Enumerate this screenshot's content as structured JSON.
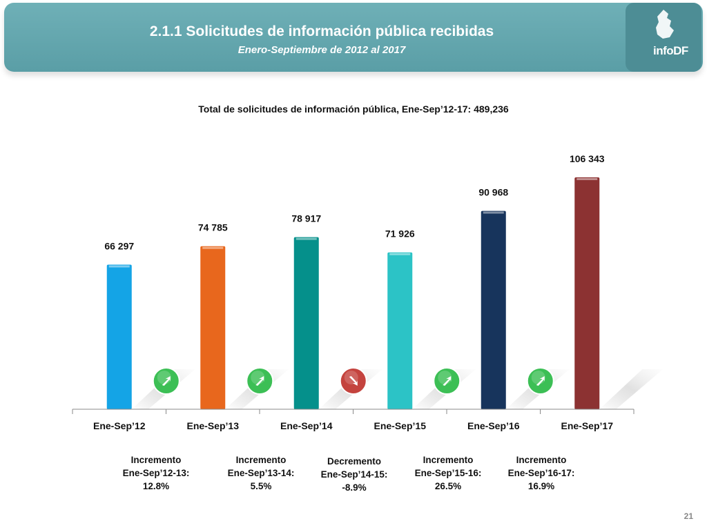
{
  "header": {
    "title": "2.1.1 Solicitudes de información pública recibidas",
    "subtitle": "Enero-Septiembre de 2012 al 2017"
  },
  "logo": {
    "text": "infoDF"
  },
  "chart_data": {
    "type": "bar",
    "title": "Total de solicitudes de información pública, Ene-Sep’12-17: 489,236",
    "categories": [
      "Ene-Sep’12",
      "Ene-Sep’13",
      "Ene-Sep’14",
      "Ene-Sep’15",
      "Ene-Sep’16",
      "Ene-Sep’17"
    ],
    "values": [
      66297,
      74785,
      78917,
      71926,
      90968,
      106343
    ],
    "value_labels": [
      "66 297",
      "74 785",
      "78 917",
      "71 926",
      "90 968",
      "106 343"
    ],
    "bar_colors": [
      "#14a4e6",
      "#e8671d",
      "#05908b",
      "#2cc3c6",
      "#17345c",
      "#8c3232"
    ],
    "ylim": [
      0,
      120000
    ],
    "grid": false,
    "xlabel": "",
    "ylabel": "",
    "change_indicators": [
      {
        "direction": "up",
        "color": "#3cbf55"
      },
      {
        "direction": "up",
        "color": "#3cbf55"
      },
      {
        "direction": "down",
        "color": "#c4433e"
      },
      {
        "direction": "up",
        "color": "#3cbf55"
      },
      {
        "direction": "up",
        "color": "#3cbf55"
      }
    ]
  },
  "notes": [
    {
      "line1": "Incremento",
      "line2": "Ene-Sep’12-13:",
      "line3": "12.8%"
    },
    {
      "line1": "Incremento",
      "line2": "Ene-Sep’13-14:",
      "line3": "5.5%"
    },
    {
      "line1": "Decremento",
      "line2": "Ene-Sep’14-15:",
      "line3": "-8.9%"
    },
    {
      "line1": "Incremento",
      "line2": "Ene-Sep’15-16:",
      "line3": "26.5%"
    },
    {
      "line1": "Incremento",
      "line2": "Ene-Sep’16-17:",
      "line3": "16.9%"
    }
  ],
  "page_number": "21"
}
